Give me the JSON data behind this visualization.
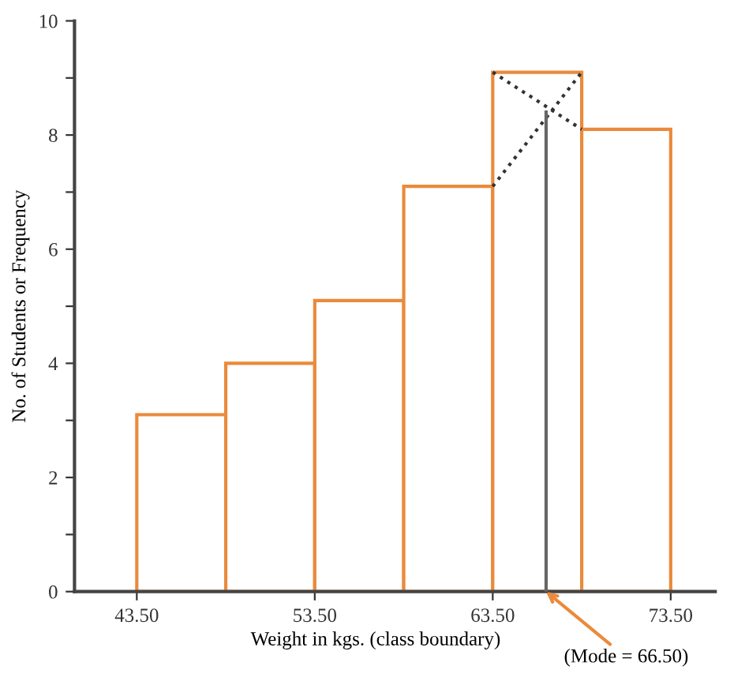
{
  "chart_data": {
    "type": "histogram",
    "xlabel": "Weight in kgs. (class boundary)",
    "ylabel": "No. of Students or Frequency",
    "bins": [
      43.5,
      48.5,
      53.5,
      58.5,
      63.5,
      68.5,
      73.5
    ],
    "values": [
      3.1,
      4.0,
      5.1,
      7.1,
      9.1,
      8.1
    ],
    "color": "#ea8a3c",
    "series": [
      {
        "type": "line",
        "x": [
          63.5,
          68.5
        ],
        "values": [
          7.1,
          9.1
        ],
        "color": "#333333",
        "line_style": "dotted"
      },
      {
        "type": "line",
        "x": [
          63.5,
          68.5
        ],
        "values": [
          9.1,
          8.1
        ],
        "color": "#333333",
        "line_style": "dotted"
      },
      {
        "type": "line",
        "x": [
          66.5,
          66.5
        ],
        "values": [
          0,
          8.4
        ],
        "color": "#666666",
        "line_style": "solid"
      }
    ],
    "annotations": [
      {
        "text": "(Mode = 66.50)",
        "x": 66.5,
        "y": 0
      }
    ],
    "xlim": [
      40,
      76
    ],
    "ylim": [
      0,
      10
    ],
    "xticks": [
      {
        "value": 43.5,
        "label": "43.50"
      },
      {
        "value": 53.5,
        "label": "53.50"
      },
      {
        "value": 63.5,
        "label": "63.50"
      },
      {
        "value": 73.5,
        "label": "73.50"
      }
    ],
    "yticks": [
      0,
      {
        "value": 1,
        "label": null
      },
      2,
      {
        "value": 3,
        "label": null
      },
      4,
      {
        "value": 5,
        "label": null
      },
      6,
      {
        "value": 7,
        "label": null
      },
      8,
      {
        "value": 9,
        "label": null
      },
      10
    ],
    "grid": false,
    "legend": false
  }
}
